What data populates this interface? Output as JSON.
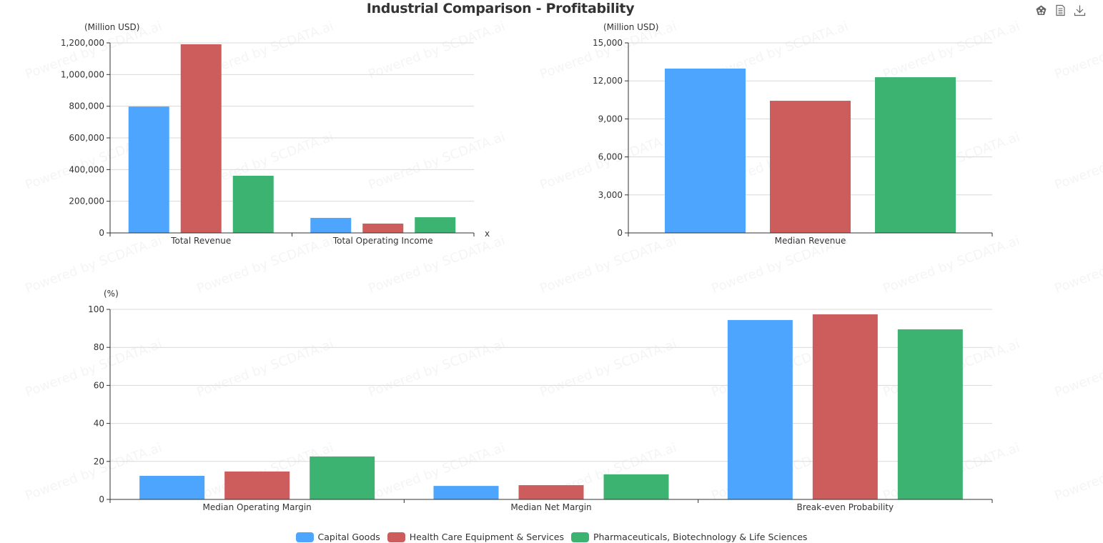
{
  "title": "Industrial Comparison - Profitability",
  "toolbox": [
    {
      "name": "data-view-icon",
      "glyph": "restore"
    },
    {
      "name": "document-icon",
      "glyph": "data view"
    },
    {
      "name": "download-icon",
      "glyph": "save as image"
    }
  ],
  "watermark_text": "Powered by SCDATA.ai",
  "colors": {
    "Capital Goods": "#4ea5fd",
    "Health Care Equipment & Services": "#cd5c5c",
    "Pharmaceuticals, Biotechnology & Life Sciences": "#3cb371"
  },
  "legend": [
    {
      "label": "Capital Goods",
      "color": "#4ea5fd"
    },
    {
      "label": "Health Care Equipment & Services",
      "color": "#cd5c5c"
    },
    {
      "label": "Pharmaceuticals, Biotechnology & Life Sciences",
      "color": "#3cb371"
    }
  ],
  "chart_data": [
    {
      "type": "bar",
      "title": "",
      "ylabel": "(Million USD)",
      "xlabel": "x",
      "categories": [
        "Total Revenue",
        "Total Operating Income"
      ],
      "ylim": [
        0,
        1200000
      ],
      "yticks": [
        0,
        200000,
        400000,
        600000,
        800000,
        1000000,
        1200000
      ],
      "ytick_labels": [
        "0",
        "200,000",
        "400,000",
        "600,000",
        "800,000",
        "1,000,000",
        "1,200,000"
      ],
      "grid": true,
      "series": [
        {
          "name": "Capital Goods",
          "values": [
            798000,
            95000
          ]
        },
        {
          "name": "Health Care Equipment & Services",
          "values": [
            1191000,
            59000
          ]
        },
        {
          "name": "Pharmaceuticals, Biotechnology & Life Sciences",
          "values": [
            361000,
            99000
          ]
        }
      ]
    },
    {
      "type": "bar",
      "title": "",
      "ylabel": "(Million USD)",
      "xlabel": "",
      "categories": [
        "Median Revenue"
      ],
      "ylim": [
        0,
        15000
      ],
      "yticks": [
        0,
        3000,
        6000,
        9000,
        12000,
        15000
      ],
      "ytick_labels": [
        "0",
        "3,000",
        "6,000",
        "9,000",
        "12,000",
        "15,000"
      ],
      "grid": true,
      "series": [
        {
          "name": "Capital Goods",
          "values": [
            12970
          ]
        },
        {
          "name": "Health Care Equipment & Services",
          "values": [
            10430
          ]
        },
        {
          "name": "Pharmaceuticals, Biotechnology & Life Sciences",
          "values": [
            12290
          ]
        }
      ]
    },
    {
      "type": "bar",
      "title": "",
      "ylabel": "(%)",
      "xlabel": "",
      "categories": [
        "Median Operating Margin",
        "Median Net Margin",
        "Break-even Probability"
      ],
      "ylim": [
        0,
        100
      ],
      "yticks": [
        0,
        20,
        40,
        60,
        80,
        100
      ],
      "ytick_labels": [
        "0",
        "20",
        "40",
        "60",
        "80",
        "100"
      ],
      "grid": true,
      "series": [
        {
          "name": "Capital Goods",
          "values": [
            12.4,
            7.1,
            94.4
          ]
        },
        {
          "name": "Health Care Equipment & Services",
          "values": [
            14.7,
            7.5,
            97.4
          ]
        },
        {
          "name": "Pharmaceuticals, Biotechnology & Life Sciences",
          "values": [
            22.6,
            13.2,
            89.5
          ]
        }
      ],
      "legend_position": "bottom"
    }
  ]
}
